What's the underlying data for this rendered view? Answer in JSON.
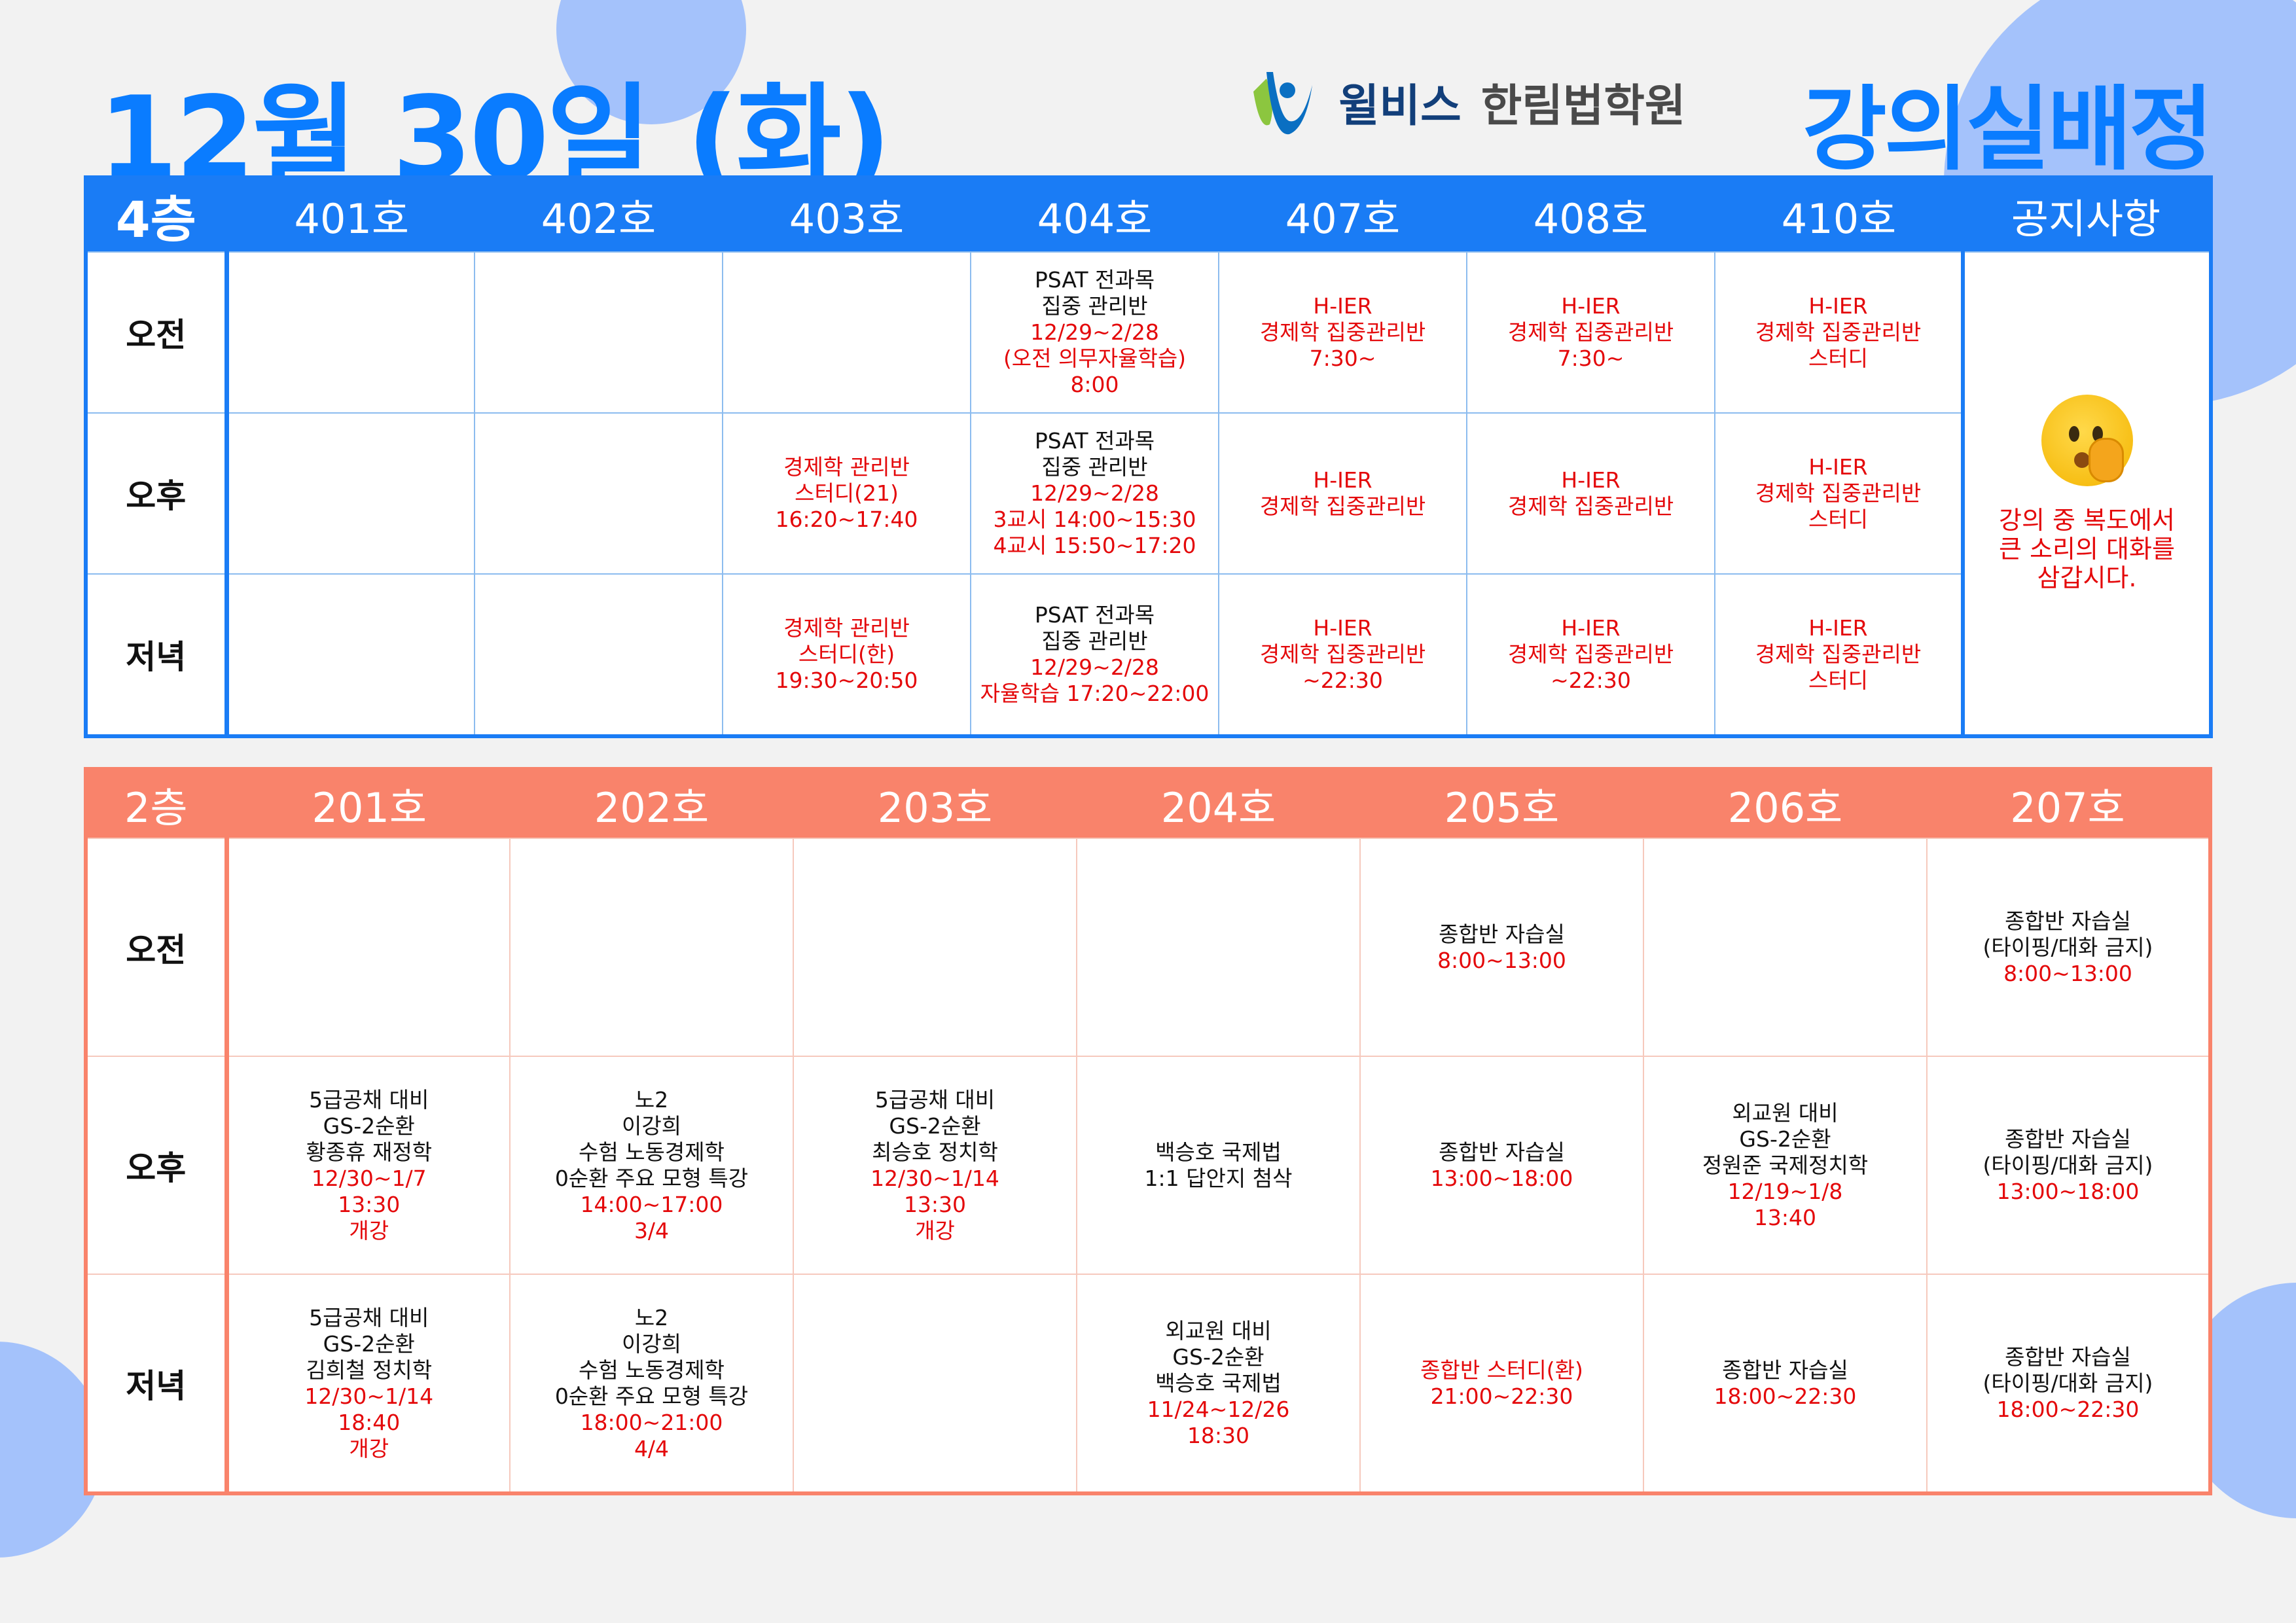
{
  "title": "12월 30일 (화)",
  "logo": {
    "brand": "윌비스",
    "academy": "한림법학원"
  },
  "heading": "강의실배정",
  "colors": {
    "accent_blue": "#0a7cff",
    "floor4": "#1a7cf5",
    "floor2": "#f9836b",
    "highlight": "#e4080a"
  },
  "periods": [
    "오전",
    "오후",
    "저녁"
  ],
  "floor4": {
    "label": "4층",
    "rooms": [
      "401호",
      "402호",
      "403호",
      "404호",
      "407호",
      "408호",
      "410호"
    ],
    "notice": {
      "label": "공지사항",
      "icon": "shushing-face-emoji",
      "lines": [
        "강의 중 복도에서",
        "큰 소리의 대화를",
        "삼갑시다."
      ]
    },
    "rows": [
      [
        {
          "black": [],
          "red": []
        },
        {
          "black": [],
          "red": []
        },
        {
          "black": [],
          "red": []
        },
        {
          "black": [
            "PSAT 전과목",
            "집중 관리반"
          ],
          "red": [
            "12/29~2/28",
            "(오전 의무자율학습)",
            "8:00"
          ]
        },
        {
          "black": [],
          "red": [
            "H-IER",
            "경제학 집중관리반",
            "7:30~"
          ]
        },
        {
          "black": [],
          "red": [
            "H-IER",
            "경제학 집중관리반",
            "7:30~"
          ]
        },
        {
          "black": [],
          "red": [
            "H-IER",
            "경제학 집중관리반",
            "스터디"
          ]
        }
      ],
      [
        {
          "black": [],
          "red": []
        },
        {
          "black": [],
          "red": []
        },
        {
          "black": [],
          "red": [
            "경제학 관리반",
            "스터디(21)",
            "16:20~17:40"
          ]
        },
        {
          "black": [
            "PSAT 전과목",
            "집중 관리반"
          ],
          "red": [
            "12/29~2/28",
            "3교시 14:00~15:30",
            "4교시 15:50~17:20"
          ]
        },
        {
          "black": [],
          "red": [
            "H-IER",
            "경제학 집중관리반"
          ]
        },
        {
          "black": [],
          "red": [
            "H-IER",
            "경제학 집중관리반"
          ]
        },
        {
          "black": [],
          "red": [
            "H-IER",
            "경제학 집중관리반",
            "스터디"
          ]
        }
      ],
      [
        {
          "black": [],
          "red": []
        },
        {
          "black": [],
          "red": []
        },
        {
          "black": [],
          "red": [
            "경제학 관리반",
            "스터디(한)",
            "19:30~20:50"
          ]
        },
        {
          "black": [
            "PSAT 전과목",
            "집중 관리반"
          ],
          "red": [
            "12/29~2/28",
            "자율학습 17:20~22:00"
          ]
        },
        {
          "black": [],
          "red": [
            "H-IER",
            "경제학 집중관리반",
            "~22:30"
          ]
        },
        {
          "black": [],
          "red": [
            "H-IER",
            "경제학 집중관리반",
            "~22:30"
          ]
        },
        {
          "black": [],
          "red": [
            "H-IER",
            "경제학 집중관리반",
            "스터디"
          ]
        }
      ]
    ]
  },
  "floor2": {
    "label": "2층",
    "rooms": [
      "201호",
      "202호",
      "203호",
      "204호",
      "205호",
      "206호",
      "207호"
    ],
    "rows": [
      [
        {
          "black": [],
          "red": []
        },
        {
          "black": [],
          "red": []
        },
        {
          "black": [],
          "red": []
        },
        {
          "black": [],
          "red": []
        },
        {
          "black": [
            "종합반 자습실"
          ],
          "red": [
            "8:00~13:00"
          ]
        },
        {
          "black": [],
          "red": []
        },
        {
          "black": [
            "종합반 자습실",
            "(타이핑/대화 금지)"
          ],
          "red": [
            "8:00~13:00"
          ]
        }
      ],
      [
        {
          "black": [
            "5급공채 대비",
            "GS-2순환",
            "황종휴 재정학"
          ],
          "red": [
            "12/30~1/7",
            "13:30",
            "개강"
          ]
        },
        {
          "black": [
            "노2",
            "이강희",
            "수험 노동경제학",
            "0순환 주요 모형 특강"
          ],
          "red": [
            "14:00~17:00",
            "3/4"
          ]
        },
        {
          "black": [
            "5급공채 대비",
            "GS-2순환",
            "최승호 정치학"
          ],
          "red": [
            "12/30~1/14",
            "13:30",
            "개강"
          ]
        },
        {
          "black": [
            "백승호 국제법",
            "1:1 답안지 첨삭"
          ],
          "red": []
        },
        {
          "black": [
            "종합반 자습실"
          ],
          "red": [
            "13:00~18:00"
          ]
        },
        {
          "black": [
            "외교원 대비",
            "GS-2순환",
            "정원준 국제정치학"
          ],
          "red": [
            "12/19~1/8",
            "13:40"
          ]
        },
        {
          "black": [
            "종합반 자습실",
            "(타이핑/대화 금지)"
          ],
          "red": [
            "13:00~18:00"
          ]
        }
      ],
      [
        {
          "black": [
            "5급공채 대비",
            "GS-2순환",
            "김희철 정치학"
          ],
          "red": [
            "12/30~1/14",
            "18:40",
            "개강"
          ]
        },
        {
          "black": [
            "노2",
            "이강희",
            "수험 노동경제학",
            "0순환 주요 모형 특강"
          ],
          "red": [
            "18:00~21:00",
            "4/4"
          ]
        },
        {
          "black": [],
          "red": []
        },
        {
          "black": [
            "외교원 대비",
            "GS-2순환",
            "백승호 국제법"
          ],
          "red": [
            "11/24~12/26",
            "18:30"
          ]
        },
        {
          "black": [],
          "red": [
            "종합반 스터디(환)",
            "21:00~22:30"
          ]
        },
        {
          "black": [
            "종합반 자습실"
          ],
          "red": [
            "18:00~22:30"
          ]
        },
        {
          "black": [
            "종합반 자습실",
            "(타이핑/대화 금지)"
          ],
          "red": [
            "18:00~22:30"
          ]
        }
      ]
    ]
  }
}
